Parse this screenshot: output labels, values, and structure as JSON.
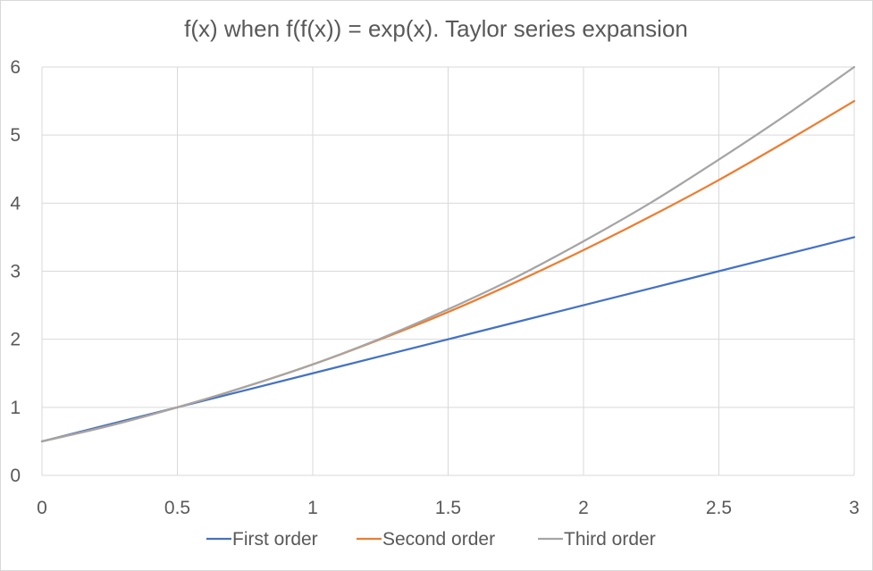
{
  "chart_data": {
    "type": "line",
    "title": "f(x) when f(f(x)) = exp(x). Taylor series expansion",
    "xlabel": "",
    "ylabel": "",
    "xlim": [
      0,
      3
    ],
    "ylim": [
      0,
      6
    ],
    "x_ticks": [
      "0",
      "0.5",
      "1",
      "1.5",
      "2",
      "2.5",
      "3"
    ],
    "y_ticks": [
      "0",
      "1",
      "2",
      "3",
      "4",
      "5",
      "6"
    ],
    "grid": true,
    "legend_position": "bottom",
    "x": [
      0,
      0.25,
      0.5,
      0.75,
      1,
      1.25,
      1.5,
      1.75,
      2,
      2.25,
      2.5,
      2.75,
      3
    ],
    "series": [
      {
        "name": "First order",
        "color": "#4472C4",
        "values": [
          0.5,
          0.75,
          1.0,
          1.25,
          1.5,
          1.75,
          2.0,
          2.25,
          2.5,
          2.75,
          3.0,
          3.25,
          3.5
        ]
      },
      {
        "name": "Second order",
        "color": "#ED7D31",
        "values": [
          0.5,
          0.73,
          1.0,
          1.3,
          1.63,
          2.0,
          2.4,
          2.84,
          3.31,
          3.81,
          4.34,
          4.91,
          5.5
        ]
      },
      {
        "name": "Third order",
        "color": "#A5A5A5",
        "values": [
          0.5,
          0.73,
          1.0,
          1.3,
          1.63,
          2.01,
          2.44,
          2.91,
          3.44,
          4.01,
          4.64,
          5.3,
          6.0
        ]
      }
    ]
  }
}
